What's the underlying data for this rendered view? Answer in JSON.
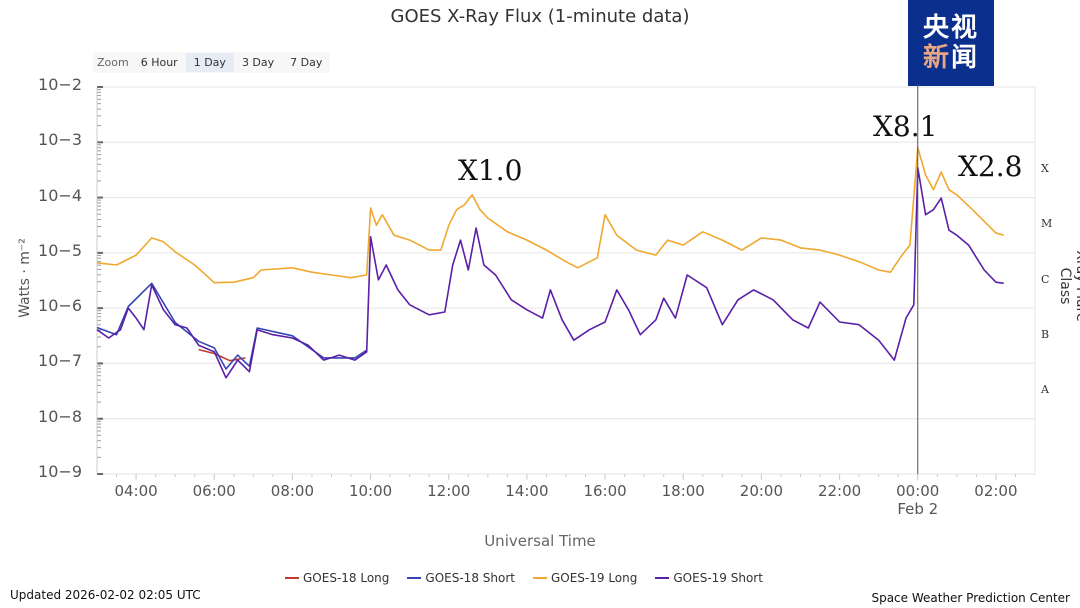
{
  "chart_data": {
    "type": "line",
    "title": "GOES X-Ray Flux (1-minute data)",
    "xlabel": "Universal Time",
    "ylabel": "Watts · m⁻²",
    "y2label": "Xray Flare Class",
    "yscale": "log",
    "ylim_log10": [
      -9,
      -2
    ],
    "xlim_hours": [
      3,
      27
    ],
    "x_ticks": [
      {
        "h": 4,
        "label": "04:00"
      },
      {
        "h": 6,
        "label": "06:00"
      },
      {
        "h": 8,
        "label": "08:00"
      },
      {
        "h": 10,
        "label": "10:00"
      },
      {
        "h": 12,
        "label": "12:00"
      },
      {
        "h": 14,
        "label": "14:00"
      },
      {
        "h": 16,
        "label": "16:00"
      },
      {
        "h": 18,
        "label": "18:00"
      },
      {
        "h": 20,
        "label": "20:00"
      },
      {
        "h": 22,
        "label": "22:00"
      },
      {
        "h": 24,
        "label": "00:00",
        "sub": "Feb 2"
      },
      {
        "h": 26,
        "label": "02:00"
      }
    ],
    "y_ticks": [
      {
        "exp": -2,
        "label": "10−2"
      },
      {
        "exp": -3,
        "label": "10−3"
      },
      {
        "exp": -4,
        "label": "10−4"
      },
      {
        "exp": -5,
        "label": "10−5"
      },
      {
        "exp": -6,
        "label": "10−6"
      },
      {
        "exp": -7,
        "label": "10−7"
      },
      {
        "exp": -8,
        "label": "10−8"
      },
      {
        "exp": -9,
        "label": "10−9"
      }
    ],
    "flare_classes": [
      {
        "label": "X",
        "exp": -3.5
      },
      {
        "label": "M",
        "exp": -4.5
      },
      {
        "label": "C",
        "exp": -5.5
      },
      {
        "label": "B",
        "exp": -6.5
      },
      {
        "label": "A",
        "exp": -7.5
      }
    ],
    "marker_line_hour": 24,
    "annotations": [
      {
        "text": "X1.0",
        "h": 12.55
      },
      {
        "text": "X8.1",
        "h": 24.0
      },
      {
        "text": "X2.8",
        "h": 25.3
      }
    ],
    "series": [
      {
        "name": "GOES-18 Long",
        "color": "#c0392b",
        "hours": [
          5.6,
          6.0,
          6.4,
          6.8
        ],
        "log10": [
          -6.75,
          -6.82,
          -6.95,
          -6.9
        ]
      },
      {
        "name": "GOES-18 Short",
        "color": "#3347b0",
        "hours": [
          3.0,
          3.5,
          3.8,
          4.4,
          5.0,
          5.6,
          6.0,
          6.3,
          6.6,
          6.9,
          7.1,
          8.0,
          8.8,
          9.6,
          9.9
        ],
        "log10": [
          -6.35,
          -6.48,
          -5.97,
          -5.55,
          -6.26,
          -6.6,
          -6.72,
          -7.1,
          -6.85,
          -7.05,
          -6.36,
          -6.5,
          -6.9,
          -6.9,
          -6.76
        ]
      },
      {
        "name": "GOES-19 Long",
        "color": "#f0a830",
        "hours": [
          3.0,
          3.5,
          4.0,
          4.4,
          4.7,
          5.0,
          5.5,
          6.0,
          6.5,
          7.0,
          7.2,
          8.0,
          8.5,
          9.0,
          9.5,
          9.9,
          10.0,
          10.15,
          10.3,
          10.6,
          11.0,
          11.5,
          11.8,
          12.0,
          12.2,
          12.4,
          12.6,
          12.8,
          13.0,
          13.5,
          14.0,
          14.5,
          15.0,
          15.3,
          15.8,
          16.0,
          16.3,
          16.8,
          17.3,
          17.6,
          18.0,
          18.5,
          19.0,
          19.5,
          20.0,
          20.5,
          21.0,
          21.5,
          22.0,
          22.5,
          23.0,
          23.3,
          23.6,
          23.8,
          24.0,
          24.2,
          24.4,
          24.6,
          24.8,
          25.0,
          25.4,
          25.8,
          26.0,
          26.2
        ],
        "log10": [
          -5.18,
          -5.22,
          -5.04,
          -4.73,
          -4.8,
          -4.98,
          -5.22,
          -5.54,
          -5.53,
          -5.45,
          -5.31,
          -5.27,
          -5.35,
          -5.4,
          -5.45,
          -5.4,
          -4.19,
          -4.5,
          -4.31,
          -4.68,
          -4.77,
          -4.95,
          -4.95,
          -4.5,
          -4.22,
          -4.13,
          -3.95,
          -4.22,
          -4.37,
          -4.62,
          -4.77,
          -4.95,
          -5.16,
          -5.27,
          -5.09,
          -4.31,
          -4.68,
          -4.95,
          -5.04,
          -4.77,
          -4.86,
          -4.62,
          -4.77,
          -4.95,
          -4.73,
          -4.77,
          -4.91,
          -4.95,
          -5.04,
          -5.16,
          -5.31,
          -5.35,
          -5.04,
          -4.86,
          -3.1,
          -3.59,
          -3.86,
          -3.54,
          -3.86,
          -3.95,
          -4.22,
          -4.5,
          -4.64,
          -4.68
        ]
      },
      {
        "name": "GOES-19 Short",
        "color": "#5b1fa8",
        "hours": [
          3.0,
          3.3,
          3.6,
          3.8,
          4.0,
          4.2,
          4.4,
          4.7,
          5.0,
          5.3,
          5.6,
          6.0,
          6.3,
          6.6,
          6.9,
          7.1,
          7.5,
          8.0,
          8.4,
          8.8,
          9.2,
          9.6,
          9.9,
          10.0,
          10.2,
          10.4,
          10.7,
          11.0,
          11.5,
          11.9,
          12.1,
          12.3,
          12.5,
          12.7,
          12.9,
          13.2,
          13.6,
          14.0,
          14.4,
          14.6,
          14.9,
          15.2,
          15.6,
          16.0,
          16.3,
          16.6,
          16.9,
          17.3,
          17.5,
          17.8,
          18.1,
          18.6,
          19.0,
          19.4,
          19.8,
          20.3,
          20.8,
          21.2,
          21.5,
          22.0,
          22.5,
          23.0,
          23.4,
          23.7,
          23.9,
          24.0,
          24.2,
          24.4,
          24.6,
          24.8,
          25.0,
          25.3,
          25.7,
          26.0,
          26.2
        ],
        "log10": [
          -6.39,
          -6.54,
          -6.39,
          -6.0,
          -6.18,
          -6.39,
          -5.58,
          -6.03,
          -6.3,
          -6.36,
          -6.67,
          -6.79,
          -7.26,
          -6.94,
          -7.15,
          -6.39,
          -6.48,
          -6.54,
          -6.67,
          -6.94,
          -6.85,
          -6.94,
          -6.79,
          -4.71,
          -5.49,
          -5.22,
          -5.67,
          -5.94,
          -6.12,
          -6.07,
          -5.22,
          -4.77,
          -5.31,
          -4.55,
          -5.22,
          -5.4,
          -5.85,
          -6.03,
          -6.18,
          -5.67,
          -6.21,
          -6.58,
          -6.39,
          -6.25,
          -5.67,
          -6.03,
          -6.48,
          -6.21,
          -5.82,
          -6.18,
          -5.4,
          -5.63,
          -6.3,
          -5.85,
          -5.67,
          -5.85,
          -6.21,
          -6.36,
          -5.89,
          -6.25,
          -6.3,
          -6.58,
          -6.94,
          -6.18,
          -5.94,
          -3.46,
          -4.31,
          -4.22,
          -4.01,
          -4.59,
          -4.68,
          -4.86,
          -5.31,
          -5.53,
          -5.55
        ]
      }
    ]
  },
  "zoom": {
    "label": "Zoom",
    "options": [
      "6 Hour",
      "1 Day",
      "3 Day",
      "7 Day"
    ],
    "selected": "1 Day"
  },
  "logo": {
    "line1": "央视",
    "line2a": "新",
    "line2b": "闻"
  },
  "footer": {
    "updated": "Updated 2026-02-02 02:05 UTC",
    "credit": "Space Weather Prediction Center"
  }
}
